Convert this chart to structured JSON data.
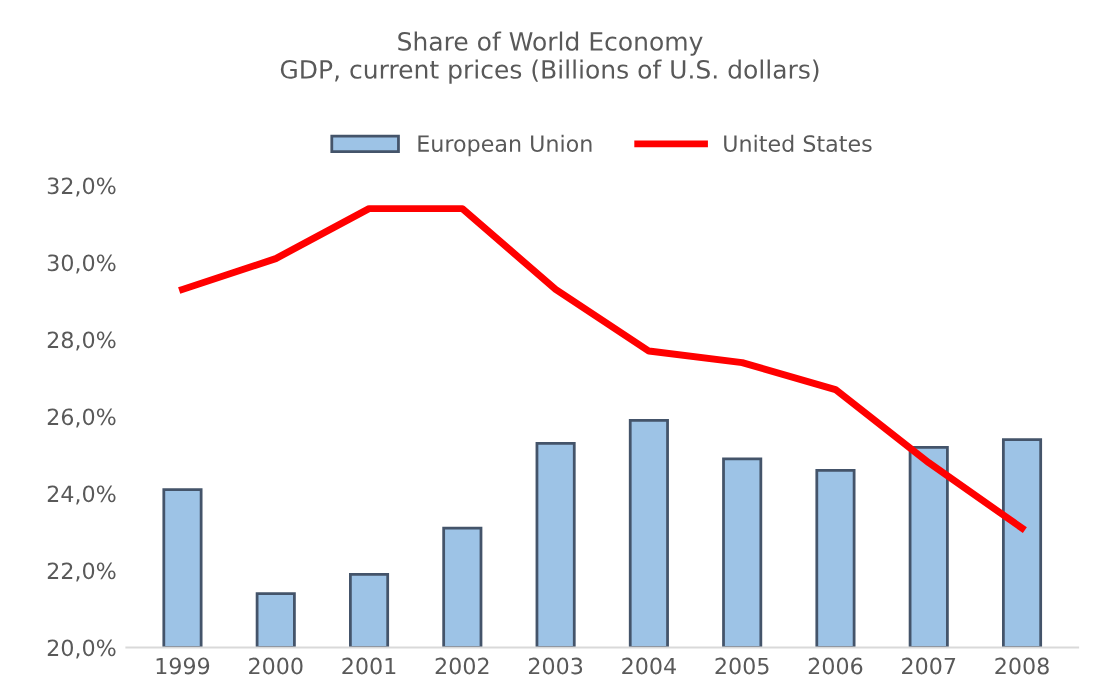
{
  "chart_data": {
    "type": "bar",
    "title": "Share of World Economy\nGDP, current prices (Billions of U.S. dollars)",
    "categories": [
      "1999",
      "2000",
      "2001",
      "2002",
      "2003",
      "2004",
      "2005",
      "2006",
      "2007",
      "2008"
    ],
    "series": [
      {
        "name": "European Union",
        "color": "#9dc3e6",
        "values": [
          24.1,
          21.4,
          21.9,
          23.1,
          25.3,
          25.9,
          24.9,
          24.6,
          25.2,
          25.4
        ]
      },
      {
        "name": "United States",
        "type": "line",
        "color": "#ff0000",
        "values": [
          29.3,
          30.1,
          31.4,
          31.4,
          29.3,
          27.7,
          27.4,
          26.7,
          24.8,
          23.1
        ]
      }
    ],
    "ylim": [
      20,
      32
    ],
    "yticks": [
      {
        "value": 20,
        "label": "20,0%"
      },
      {
        "value": 22,
        "label": "22,0%"
      },
      {
        "value": 24,
        "label": "24,0%"
      },
      {
        "value": 26,
        "label": "26,0%"
      },
      {
        "value": 28,
        "label": "28,0%"
      },
      {
        "value": 30,
        "label": "30,0%"
      },
      {
        "value": 32,
        "label": "32,0%"
      }
    ],
    "grid": false,
    "legend": "top"
  }
}
